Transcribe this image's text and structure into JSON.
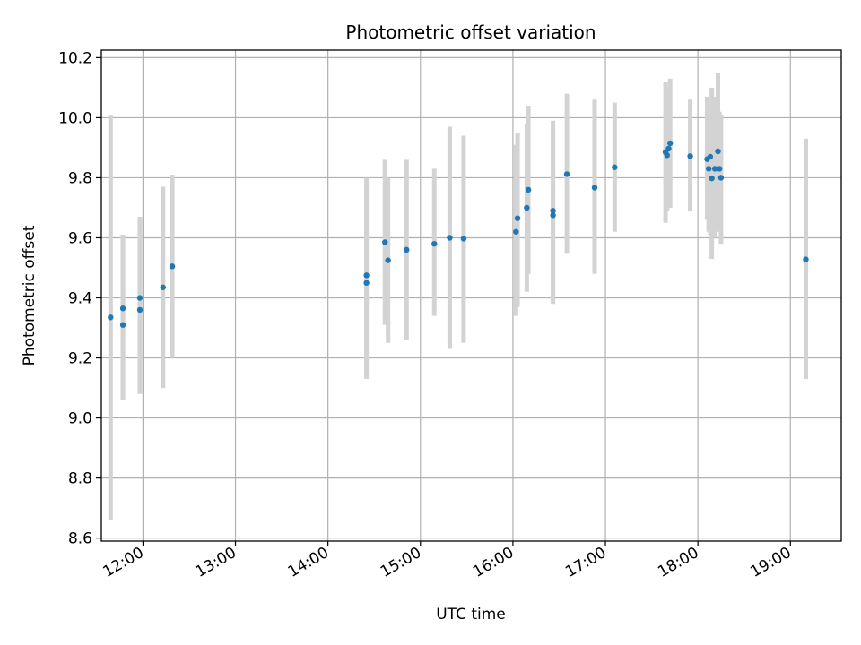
{
  "chart_data": {
    "type": "scatter",
    "title": "Photometric offset variation",
    "xlabel": "UTC time",
    "ylabel": "Photometric offset",
    "x_ticks": [
      "12:00",
      "13:00",
      "14:00",
      "15:00",
      "16:00",
      "17:00",
      "18:00",
      "19:00"
    ],
    "y_ticks": [
      "8.6",
      "8.8",
      "9.0",
      "9.2",
      "9.4",
      "9.6",
      "9.8",
      "10.0",
      "10.2"
    ],
    "xlim": [
      "11:33",
      "19:33"
    ],
    "ylim": [
      8.59,
      10.225
    ],
    "grid": true,
    "colors": {
      "point": "#1f77b4",
      "errorbar": "#d3d3d3",
      "grid": "#b0b0b0"
    },
    "points": [
      {
        "t": "11:39",
        "y": 9.335,
        "lo": 8.66,
        "hi": 10.01
      },
      {
        "t": "11:47",
        "y": 9.365,
        "lo": 9.06,
        "hi": 9.61
      },
      {
        "t": "11:47",
        "y": 9.31,
        "lo": 9.06,
        "hi": 9.61
      },
      {
        "t": "11:58",
        "y": 9.4,
        "lo": 9.08,
        "hi": 9.67
      },
      {
        "t": "11:58",
        "y": 9.36,
        "lo": 9.09,
        "hi": 9.63
      },
      {
        "t": "12:13",
        "y": 9.435,
        "lo": 9.1,
        "hi": 9.77
      },
      {
        "t": "12:19",
        "y": 9.505,
        "lo": 9.2,
        "hi": 9.81
      },
      {
        "t": "14:25",
        "y": 9.475,
        "lo": 9.15,
        "hi": 9.8
      },
      {
        "t": "14:25",
        "y": 9.45,
        "lo": 9.13,
        "hi": 9.77
      },
      {
        "t": "14:37",
        "y": 9.585,
        "lo": 9.31,
        "hi": 9.86
      },
      {
        "t": "14:39",
        "y": 9.525,
        "lo": 9.25,
        "hi": 9.8
      },
      {
        "t": "14:51",
        "y": 9.56,
        "lo": 9.26,
        "hi": 9.86
      },
      {
        "t": "15:09",
        "y": 9.58,
        "lo": 9.34,
        "hi": 9.83
      },
      {
        "t": "15:19",
        "y": 9.6,
        "lo": 9.23,
        "hi": 9.97
      },
      {
        "t": "15:28",
        "y": 9.597,
        "lo": 9.25,
        "hi": 9.94
      },
      {
        "t": "16:02",
        "y": 9.62,
        "lo": 9.34,
        "hi": 9.91
      },
      {
        "t": "16:03",
        "y": 9.665,
        "lo": 9.37,
        "hi": 9.95
      },
      {
        "t": "16:09",
        "y": 9.7,
        "lo": 9.42,
        "hi": 9.98
      },
      {
        "t": "16:10",
        "y": 9.76,
        "lo": 9.48,
        "hi": 10.04
      },
      {
        "t": "16:26",
        "y": 9.69,
        "lo": 9.39,
        "hi": 9.99
      },
      {
        "t": "16:26",
        "y": 9.675,
        "lo": 9.38,
        "hi": 9.97
      },
      {
        "t": "16:35",
        "y": 9.812,
        "lo": 9.55,
        "hi": 10.08
      },
      {
        "t": "16:53",
        "y": 9.767,
        "lo": 9.48,
        "hi": 10.06
      },
      {
        "t": "17:06",
        "y": 9.835,
        "lo": 9.62,
        "hi": 10.05
      },
      {
        "t": "17:39",
        "y": 9.885,
        "lo": 9.65,
        "hi": 10.12
      },
      {
        "t": "17:40",
        "y": 9.875,
        "lo": 9.69,
        "hi": 10.06
      },
      {
        "t": "17:41",
        "y": 9.897,
        "lo": 9.71,
        "hi": 10.1
      },
      {
        "t": "17:42",
        "y": 9.915,
        "lo": 9.7,
        "hi": 10.13
      },
      {
        "t": "17:55",
        "y": 9.872,
        "lo": 9.69,
        "hi": 10.06
      },
      {
        "t": "18:06",
        "y": 9.862,
        "lo": 9.66,
        "hi": 10.07
      },
      {
        "t": "18:07",
        "y": 9.83,
        "lo": 9.62,
        "hi": 10.05
      },
      {
        "t": "18:08",
        "y": 9.87,
        "lo": 9.61,
        "hi": 10.03
      },
      {
        "t": "18:09",
        "y": 9.798,
        "lo": 9.53,
        "hi": 10.1
      },
      {
        "t": "18:11",
        "y": 9.83,
        "lo": 9.6,
        "hi": 10.07
      },
      {
        "t": "18:13",
        "y": 9.888,
        "lo": 9.62,
        "hi": 10.15
      },
      {
        "t": "18:14",
        "y": 9.83,
        "lo": 9.63,
        "hi": 10.02
      },
      {
        "t": "18:15",
        "y": 9.8,
        "lo": 9.58,
        "hi": 10.01
      },
      {
        "t": "19:10",
        "y": 9.528,
        "lo": 9.13,
        "hi": 9.93
      }
    ]
  }
}
